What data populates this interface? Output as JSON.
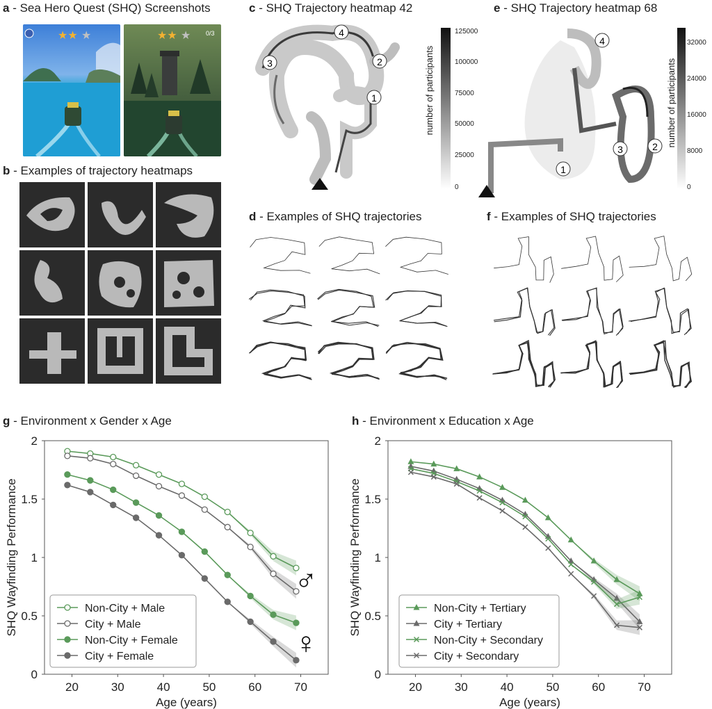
{
  "panels": {
    "a": {
      "letter": "a",
      "title": "Sea Hero Quest (SHQ) Screenshots",
      "hud_count": "0/3"
    },
    "b": {
      "letter": "b",
      "title": "Examples of trajectory heatmaps"
    },
    "c": {
      "letter": "c",
      "title": "SHQ Trajectory heatmap 42",
      "markers": [
        "1",
        "2",
        "3",
        "4"
      ],
      "colorbar": {
        "label": "number of participants",
        "ticks": [
          "125000",
          "100000",
          "75000",
          "50000",
          "25000",
          "0"
        ]
      }
    },
    "d": {
      "letter": "d",
      "title": "Examples of SHQ trajectories"
    },
    "e": {
      "letter": "e",
      "title": "SHQ Trajectory heatmap 68",
      "markers": [
        "1",
        "2",
        "3",
        "4"
      ],
      "colorbar": {
        "label": "number of participants",
        "ticks": [
          "32000",
          "24000",
          "16000",
          "8000",
          "0"
        ]
      }
    },
    "f": {
      "letter": "f",
      "title": "Examples of SHQ trajectories"
    },
    "g": {
      "letter": "g",
      "title": "Environment x Gender x Age"
    },
    "h": {
      "letter": "h",
      "title": "Environment x Education x Age"
    }
  },
  "chart_data": [
    {
      "type": "line",
      "title": "Environment x Gender x Age",
      "xlabel": "Age (years)",
      "ylabel": "SHQ Wayfinding Performance",
      "xlim": [
        14,
        76
      ],
      "ylim": [
        0,
        2
      ],
      "xticks": [
        "20",
        "30",
        "40",
        "50",
        "60",
        "70"
      ],
      "yticks": [
        "0",
        "0.5",
        "1",
        "1.5",
        "2"
      ],
      "x": [
        19,
        24,
        29,
        34,
        39,
        44,
        49,
        54,
        59,
        64,
        69
      ],
      "legend_position": "bottom-left",
      "symbols": [
        "♂",
        "♀"
      ],
      "colors": {
        "non_city": "#5a9a5a",
        "city": "#6a6a6a"
      },
      "series": [
        {
          "name": "Non-City + Male",
          "marker": "open-circle",
          "color": "#5a9a5a",
          "values": [
            1.91,
            1.89,
            1.86,
            1.79,
            1.71,
            1.63,
            1.52,
            1.39,
            1.21,
            1.01,
            0.91
          ]
        },
        {
          "name": "City + Male",
          "marker": "open-circle",
          "color": "#6a6a6a",
          "values": [
            1.87,
            1.85,
            1.8,
            1.7,
            1.61,
            1.53,
            1.41,
            1.26,
            1.09,
            0.86,
            0.71
          ]
        },
        {
          "name": "Non-City + Female",
          "marker": "filled-circle",
          "color": "#5a9a5a",
          "values": [
            1.71,
            1.66,
            1.58,
            1.47,
            1.36,
            1.22,
            1.05,
            0.85,
            0.67,
            0.51,
            0.44
          ]
        },
        {
          "name": "City + Female",
          "marker": "filled-circle",
          "color": "#6a6a6a",
          "values": [
            1.62,
            1.56,
            1.45,
            1.34,
            1.19,
            1.02,
            0.82,
            0.62,
            0.45,
            0.28,
            0.12
          ]
        }
      ]
    },
    {
      "type": "line",
      "title": "Environment x Education x Age",
      "xlabel": "Age (years)",
      "ylabel": "SHQ Wayfinding Performance",
      "xlim": [
        14,
        76
      ],
      "ylim": [
        0,
        2
      ],
      "xticks": [
        "20",
        "30",
        "40",
        "50",
        "60",
        "70"
      ],
      "yticks": [
        "0",
        "0.5",
        "1",
        "1.5",
        "2"
      ],
      "x": [
        19,
        24,
        29,
        34,
        39,
        44,
        49,
        54,
        59,
        64,
        69
      ],
      "legend_position": "bottom-left",
      "series": [
        {
          "name": "Non-City + Tertiary",
          "marker": "triangle",
          "color": "#5a9a5a",
          "values": [
            1.82,
            1.8,
            1.76,
            1.69,
            1.6,
            1.49,
            1.34,
            1.15,
            0.97,
            0.81,
            0.69
          ]
        },
        {
          "name": "City + Tertiary",
          "marker": "triangle",
          "color": "#6a6a6a",
          "values": [
            1.78,
            1.74,
            1.67,
            1.59,
            1.49,
            1.37,
            1.18,
            0.97,
            0.81,
            0.65,
            0.45
          ]
        },
        {
          "name": "Non-City + Secondary",
          "marker": "x",
          "color": "#5a9a5a",
          "values": [
            1.76,
            1.72,
            1.65,
            1.57,
            1.47,
            1.35,
            1.16,
            0.94,
            0.79,
            0.6,
            0.66
          ]
        },
        {
          "name": "City + Secondary",
          "marker": "x",
          "color": "#6a6a6a",
          "values": [
            1.73,
            1.69,
            1.63,
            1.51,
            1.4,
            1.26,
            1.08,
            0.86,
            0.67,
            0.42,
            0.4
          ]
        }
      ]
    }
  ]
}
